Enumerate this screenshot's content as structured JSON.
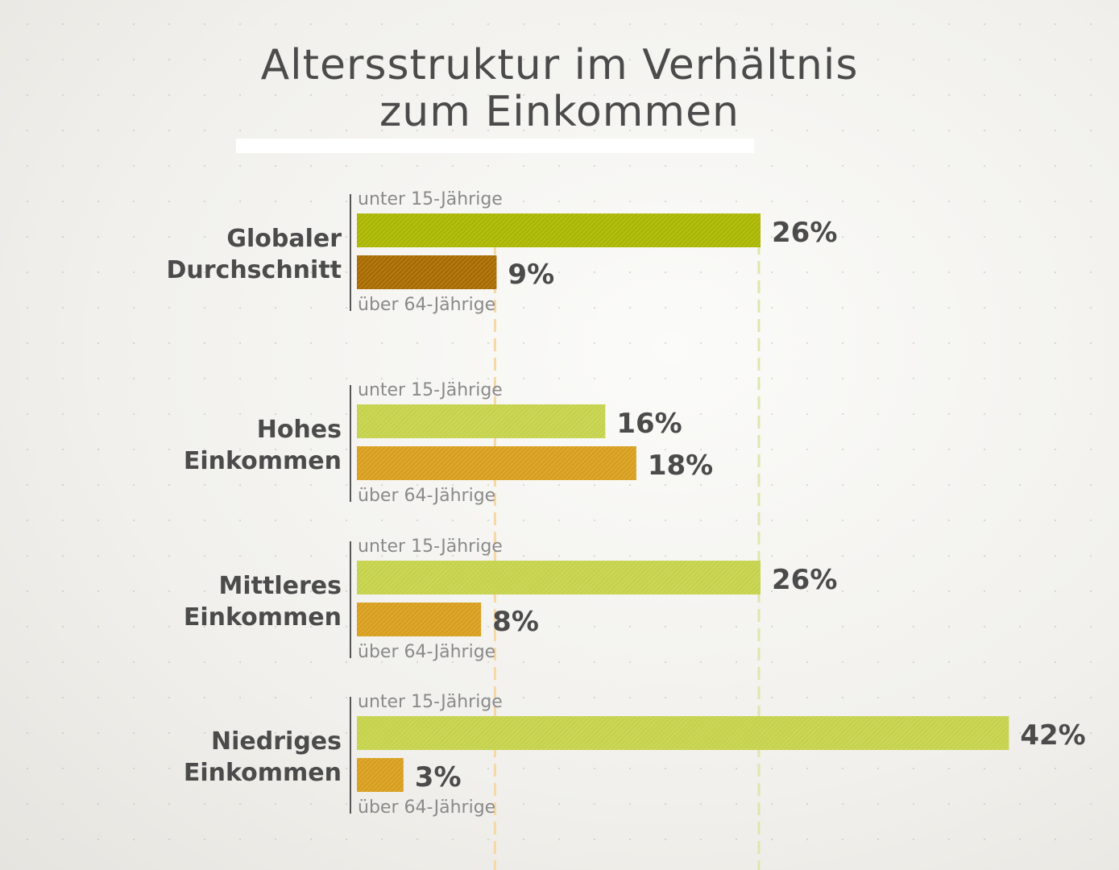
{
  "title": {
    "line1": "Altersstruktur im Verhältnis",
    "line2": "zum Einkommen"
  },
  "colors": {
    "under15_global": "#aab600",
    "over64_global": "#a86a00",
    "under15": "#c5d24a",
    "over64": "#d89e1c",
    "guide_under15": "#dfe6ae",
    "guide_over64": "#f6d8a6",
    "text": "#4b4b4b",
    "sublabel": "#8a8a8a"
  },
  "chart_data": {
    "type": "bar",
    "orientation": "horizontal",
    "title": "Altersstruktur im Verhältnis zum Einkommen",
    "unit": "%",
    "categories": [
      [
        "Globaler",
        "Durchschnitt"
      ],
      [
        "Hohes",
        "Einkommen"
      ],
      [
        "Mittleres",
        "Einkommen"
      ],
      [
        "Niedriges",
        "Einkommen"
      ]
    ],
    "series": [
      {
        "name": "unter 15-Jährige",
        "values": [
          26,
          16,
          26,
          42
        ],
        "labels": [
          "26%",
          "16%",
          "26%",
          "42%"
        ]
      },
      {
        "name": "über 64-Jährige",
        "values": [
          9,
          18,
          8,
          3
        ],
        "labels": [
          "9%",
          "18%",
          "8%",
          "3%"
        ]
      }
    ],
    "reference_lines": [
      {
        "series": "über 64-Jährige",
        "value": 9
      },
      {
        "series": "unter 15-Jährige",
        "value": 26
      }
    ],
    "grid": false,
    "legend": "none"
  }
}
